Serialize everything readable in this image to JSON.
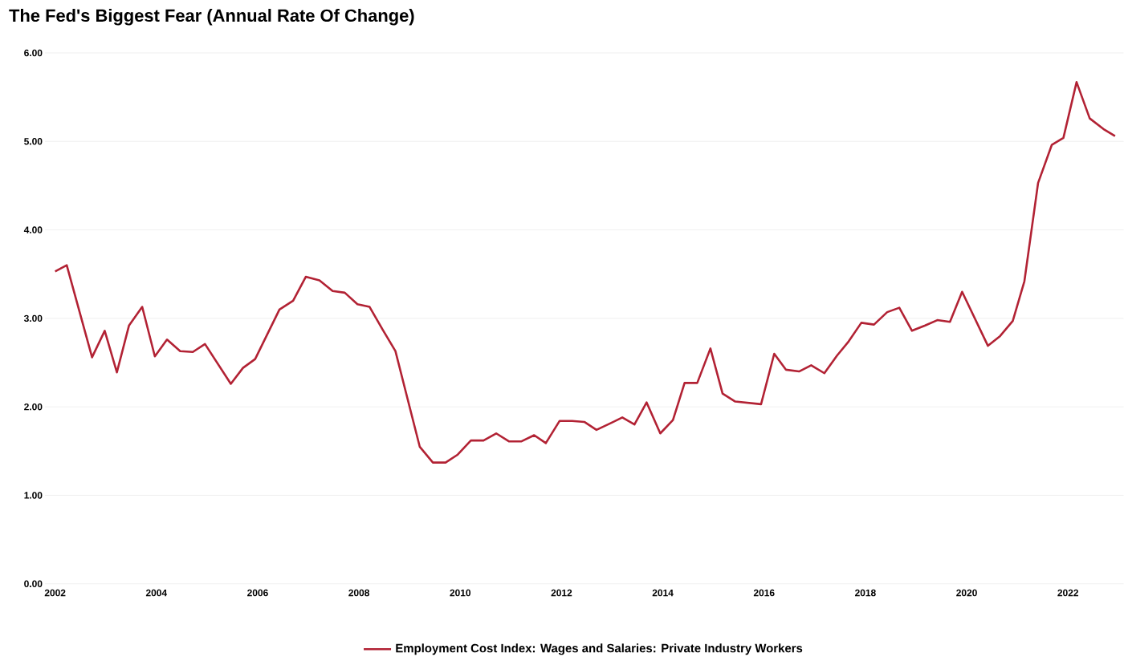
{
  "chart_data": {
    "type": "line",
    "title": "**The Fed's Biggest Fear (Annual Rate Of Change)**",
    "x": [
      2002.0,
      2002.23,
      2002.73,
      2002.98,
      2003.22,
      2003.46,
      2003.72,
      2003.97,
      2004.21,
      2004.47,
      2004.72,
      2004.96,
      2005.47,
      2005.71,
      2005.95,
      2006.43,
      2006.7,
      2006.95,
      2007.22,
      2007.48,
      2007.72,
      2007.97,
      2008.21,
      2008.47,
      2008.72,
      2008.96,
      2009.2,
      2009.46,
      2009.71,
      2009.95,
      2010.21,
      2010.46,
      2010.71,
      2010.96,
      2011.21,
      2011.46,
      2011.69,
      2011.96,
      2012.21,
      2012.45,
      2012.69,
      2012.95,
      2013.2,
      2013.44,
      2013.68,
      2013.95,
      2014.2,
      2014.43,
      2014.68,
      2014.94,
      2015.18,
      2015.43,
      2015.94,
      2016.2,
      2016.43,
      2016.69,
      2016.93,
      2017.19,
      2017.44,
      2017.67,
      2017.92,
      2018.17,
      2018.43,
      2018.67,
      2018.92,
      2019.18,
      2019.42,
      2019.67,
      2019.91,
      2020.42,
      2020.66,
      2020.91,
      2021.14,
      2021.41,
      2021.68,
      2021.91,
      2022.17,
      2022.43,
      2022.7,
      2022.93
    ],
    "series": [
      {
        "name": "Employment Cost Index: Wages and Salaries: Private Industry Workers",
        "color": "#b22234",
        "values": [
          3.53,
          3.6,
          2.56,
          2.86,
          2.39,
          2.92,
          3.13,
          2.57,
          2.76,
          2.63,
          2.62,
          2.71,
          2.26,
          2.44,
          2.54,
          3.1,
          3.2,
          3.47,
          3.43,
          3.31,
          3.29,
          3.16,
          3.13,
          2.87,
          2.63,
          2.09,
          1.55,
          1.37,
          1.37,
          1.46,
          1.62,
          1.62,
          1.7,
          1.61,
          1.61,
          1.68,
          1.59,
          1.84,
          1.84,
          1.83,
          1.74,
          1.81,
          1.88,
          1.8,
          2.05,
          1.7,
          1.85,
          2.27,
          2.27,
          2.66,
          2.15,
          2.06,
          2.03,
          2.6,
          2.42,
          2.4,
          2.47,
          2.38,
          2.58,
          2.74,
          2.95,
          2.93,
          3.07,
          3.12,
          2.86,
          2.92,
          2.98,
          2.96,
          3.3,
          2.69,
          2.8,
          2.97,
          3.42,
          4.53,
          4.96,
          5.04,
          5.67,
          5.26,
          5.14,
          5.06
        ]
      }
    ],
    "xlim": [
      2001.8,
      2023.1
    ],
    "xticks": [
      2002,
      2004,
      2006,
      2008,
      2010,
      2012,
      2014,
      2016,
      2018,
      2020,
      2022
    ],
    "ylim": [
      0,
      6
    ],
    "yticks": [
      {
        "value": 0,
        "label": "0.00"
      },
      {
        "value": 1,
        "label": "1.00"
      },
      {
        "value": 2,
        "label": "2.00"
      },
      {
        "value": 3,
        "label": "3.00"
      },
      {
        "value": 4,
        "label": "4.00"
      },
      {
        "value": 5,
        "label": "5.00"
      },
      {
        "value": 6,
        "label": "6.00"
      }
    ],
    "grid": "y",
    "legend": "bottom",
    "marker": "none",
    "line_style": "solid"
  }
}
